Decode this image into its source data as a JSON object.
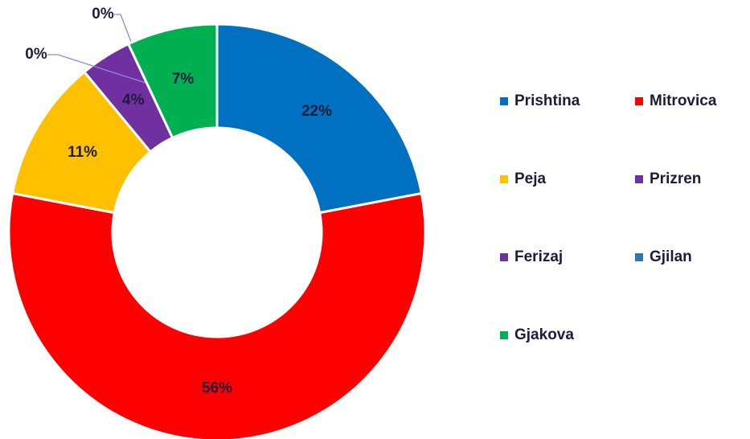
{
  "chart_data": {
    "type": "donut",
    "categories": [
      "Prishtina",
      "Mitrovica",
      "Peja",
      "Prizren",
      "Ferizaj",
      "Gjilan",
      "Gjakova"
    ],
    "values": [
      22,
      56,
      11,
      4,
      0,
      0,
      7
    ],
    "value_labels": [
      "22%",
      "56%",
      "11%",
      "4%",
      "0%",
      "0%",
      "7%"
    ],
    "colors": [
      "#0070c0",
      "#ff0000",
      "#ffc000",
      "#7030a0",
      "#7030a0",
      "#2e75b6",
      "#00b050"
    ],
    "legend": "right"
  }
}
